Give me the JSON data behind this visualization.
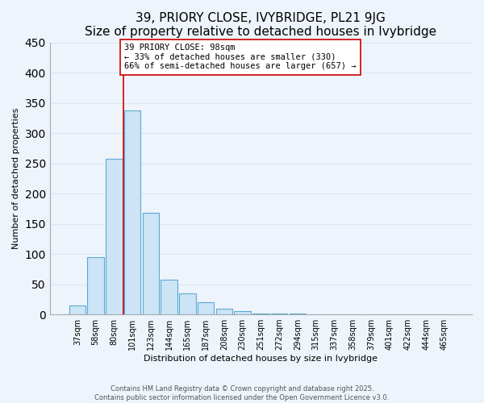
{
  "title": "39, PRIORY CLOSE, IVYBRIDGE, PL21 9JG",
  "subtitle": "Size of property relative to detached houses in Ivybridge",
  "xlabel": "Distribution of detached houses by size in Ivybridge",
  "ylabel": "Number of detached properties",
  "bar_labels": [
    "37sqm",
    "58sqm",
    "80sqm",
    "101sqm",
    "123sqm",
    "144sqm",
    "165sqm",
    "187sqm",
    "208sqm",
    "230sqm",
    "251sqm",
    "272sqm",
    "294sqm",
    "315sqm",
    "337sqm",
    "358sqm",
    "379sqm",
    "401sqm",
    "422sqm",
    "444sqm",
    "465sqm"
  ],
  "bar_values": [
    15,
    95,
    258,
    338,
    168,
    57,
    35,
    20,
    10,
    5,
    2,
    1,
    1,
    0,
    0,
    0,
    0,
    0,
    0,
    0,
    0
  ],
  "bar_color": "#cce4f5",
  "bar_edge_color": "#5baad4",
  "vline_x_idx": 3,
  "vline_color": "#cc0000",
  "annotation_text": "39 PRIORY CLOSE: 98sqm\n← 33% of detached houses are smaller (330)\n66% of semi-detached houses are larger (657) →",
  "annotation_box_color": "#ffffff",
  "annotation_box_edge": "#cc0000",
  "annotation_fontsize": 7.5,
  "ylim": [
    0,
    450
  ],
  "yticks": [
    0,
    50,
    100,
    150,
    200,
    250,
    300,
    350,
    400,
    450
  ],
  "footer1": "Contains HM Land Registry data © Crown copyright and database right 2025.",
  "footer2": "Contains public sector information licensed under the Open Government Licence v3.0.",
  "bg_color": "#eef4fb",
  "grid_color": "#d8e8f4",
  "title_fontsize": 11,
  "axis_label_fontsize": 8,
  "tick_fontsize": 7
}
